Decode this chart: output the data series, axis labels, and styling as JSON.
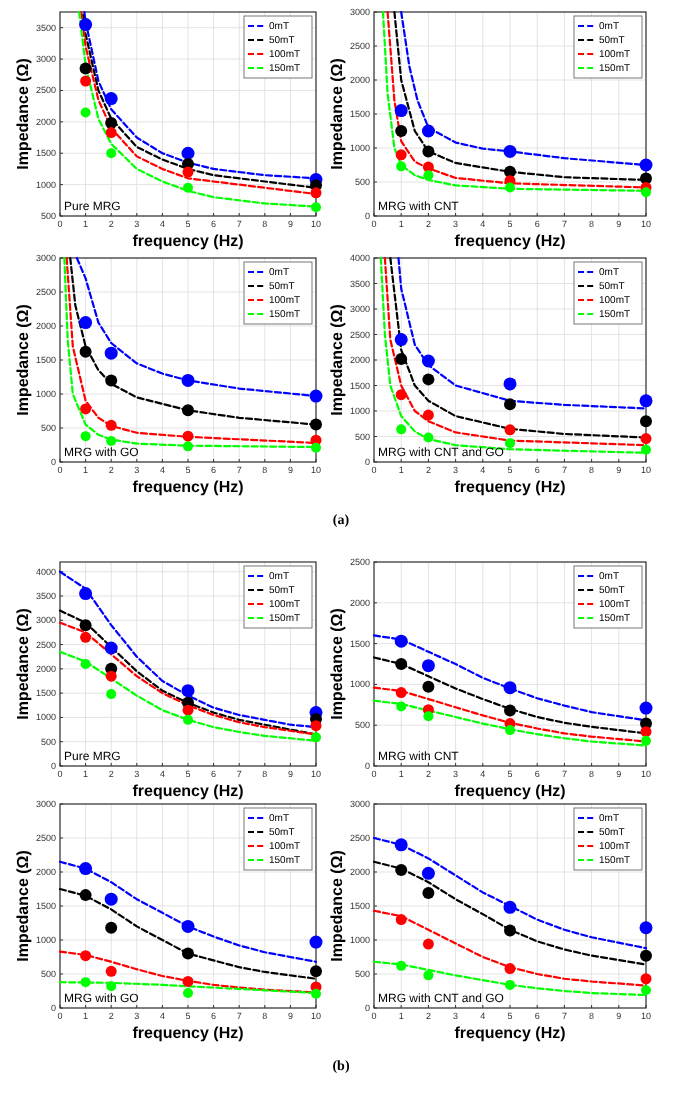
{
  "chart_data": [
    {
      "type": "scatter",
      "xlabel": "frequency (Hz)",
      "ylabel": "Impedance (Ω)",
      "x": [
        1,
        2,
        5,
        10
      ],
      "xlim": [
        0,
        10
      ],
      "xticks": [
        0,
        1,
        2,
        3,
        4,
        5,
        6,
        7,
        8,
        9,
        10
      ],
      "ylim": [
        500,
        3750
      ],
      "yticks": [
        500,
        1000,
        1500,
        2000,
        2500,
        3000,
        3500
      ],
      "grid": true,
      "legend": "top right",
      "annotations": [
        "Pure MRG"
      ],
      "series": [
        {
          "name": "0mT",
          "type": "line",
          "line_style": "dashed",
          "marker": "none",
          "color": "#0000ff",
          "x": [
            0.95,
            1,
            1.5,
            2,
            3,
            4,
            5,
            6,
            8,
            10
          ],
          "values": [
            3750,
            3600,
            2650,
            2200,
            1750,
            1500,
            1350,
            1250,
            1150,
            1100
          ]
        },
        {
          "name": "50mT",
          "type": "line",
          "line_style": "dashed",
          "marker": "none",
          "color": "#000000",
          "x": [
            0.9,
            1,
            1.5,
            2,
            3,
            4,
            5,
            6,
            8,
            10
          ],
          "values": [
            3700,
            3400,
            2500,
            2050,
            1600,
            1400,
            1250,
            1150,
            1050,
            950
          ]
        },
        {
          "name": "100mT",
          "type": "line",
          "line_style": "dashed",
          "marker": "none",
          "color": "#ff0000",
          "x": [
            0.83,
            1,
            1.5,
            2,
            3,
            4,
            5,
            6,
            8,
            10
          ],
          "values": [
            3750,
            3200,
            2350,
            1900,
            1450,
            1250,
            1100,
            1050,
            950,
            850
          ]
        },
        {
          "name": "150mT",
          "type": "line",
          "line_style": "dashed",
          "marker": "none",
          "color": "#00ff00",
          "x": [
            0.75,
            1,
            1.5,
            2,
            3,
            4,
            5,
            6,
            8,
            10
          ],
          "values": [
            3750,
            2900,
            2050,
            1650,
            1250,
            1050,
            900,
            800,
            700,
            650
          ]
        },
        {
          "type": "scatter",
          "marker": "circle",
          "color": "#0000ff",
          "values": [
            3550,
            2370,
            1500,
            1080
          ]
        },
        {
          "type": "scatter",
          "marker": "circle",
          "color": "#000000",
          "values": [
            2850,
            1980,
            1330,
            990
          ]
        },
        {
          "type": "scatter",
          "marker": "circle",
          "color": "#ff0000",
          "values": [
            2650,
            1830,
            1200,
            870
          ]
        },
        {
          "type": "scatter",
          "marker": "circle",
          "color": "#00ff00",
          "values": [
            2150,
            1500,
            950,
            640
          ]
        }
      ]
    },
    {
      "type": "scatter",
      "xlabel": "frequency (Hz)",
      "ylabel": "Impedance (Ω)",
      "x": [
        1,
        2,
        5,
        10
      ],
      "xlim": [
        0,
        10
      ],
      "xticks": [
        0,
        1,
        2,
        3,
        4,
        5,
        6,
        7,
        8,
        9,
        10
      ],
      "ylim": [
        0,
        3000
      ],
      "yticks": [
        0,
        500,
        1000,
        1500,
        2000,
        2500,
        3000
      ],
      "grid": true,
      "legend": "top right",
      "annotations": [
        "MRG with CNT"
      ],
      "series": [
        {
          "name": "0mT",
          "type": "line",
          "line_style": "dashed",
          "marker": "none",
          "color": "#0000ff",
          "x": [
            1,
            1.3,
            1.6,
            2,
            3,
            4,
            5,
            7,
            10
          ],
          "values": [
            3000,
            2200,
            1700,
            1300,
            1080,
            990,
            950,
            850,
            750
          ]
        },
        {
          "name": "50mT",
          "type": "line",
          "line_style": "dashed",
          "marker": "none",
          "color": "#000000",
          "x": [
            0.75,
            1,
            1.5,
            2,
            3,
            5,
            7,
            10
          ],
          "values": [
            3000,
            2000,
            1250,
            950,
            780,
            650,
            570,
            530
          ]
        },
        {
          "name": "100mT",
          "type": "line",
          "line_style": "dashed",
          "marker": "none",
          "color": "#ff0000",
          "x": [
            0.5,
            0.75,
            1,
            1.5,
            2,
            3,
            5,
            10
          ],
          "values": [
            3000,
            1700,
            1100,
            800,
            700,
            560,
            480,
            420
          ]
        },
        {
          "name": "150mT",
          "type": "line",
          "line_style": "dashed",
          "marker": "none",
          "color": "#00ff00",
          "x": [
            0.33,
            0.5,
            0.75,
            1,
            1.5,
            2,
            3,
            5,
            10
          ],
          "values": [
            3000,
            1800,
            1000,
            750,
            600,
            530,
            450,
            400,
            370
          ]
        },
        {
          "type": "scatter",
          "marker": "circle",
          "color": "#0000ff",
          "values": [
            1550,
            1250,
            950,
            750
          ]
        },
        {
          "type": "scatter",
          "marker": "circle",
          "color": "#000000",
          "values": [
            1250,
            950,
            650,
            550
          ]
        },
        {
          "type": "scatter",
          "marker": "circle",
          "color": "#ff0000",
          "values": [
            900,
            720,
            520,
            420
          ]
        },
        {
          "type": "scatter",
          "marker": "circle",
          "color": "#00ff00",
          "values": [
            730,
            600,
            420,
            350
          ]
        }
      ]
    },
    {
      "type": "scatter",
      "xlabel": "frequency (Hz)",
      "ylabel": "Impedance (Ω)",
      "x": [
        1,
        2,
        5,
        10
      ],
      "xlim": [
        0,
        10
      ],
      "xticks": [
        0,
        1,
        2,
        3,
        4,
        5,
        6,
        7,
        8,
        9,
        10
      ],
      "ylim": [
        0,
        3000
      ],
      "yticks": [
        0,
        500,
        1000,
        1500,
        2000,
        2500,
        3000
      ],
      "grid": true,
      "legend": "top right",
      "annotations": [
        "MRG with GO"
      ],
      "series": [
        {
          "name": "0mT",
          "type": "line",
          "line_style": "dashed",
          "marker": "none",
          "color": "#0000ff",
          "x": [
            0.66,
            1,
            1.5,
            2,
            3,
            4,
            5,
            7,
            10
          ],
          "values": [
            3000,
            2700,
            2050,
            1750,
            1450,
            1300,
            1200,
            1080,
            970
          ]
        },
        {
          "name": "50mT",
          "type": "line",
          "line_style": "dashed",
          "marker": "none",
          "color": "#000000",
          "x": [
            0.4,
            0.6,
            1,
            1.5,
            2,
            3,
            5,
            7,
            10
          ],
          "values": [
            3000,
            2300,
            1700,
            1350,
            1150,
            950,
            760,
            650,
            550
          ]
        },
        {
          "name": "100mT",
          "type": "line",
          "line_style": "dashed",
          "marker": "none",
          "color": "#ff0000",
          "x": [
            0.26,
            0.5,
            1,
            1.5,
            2,
            3,
            5,
            10
          ],
          "values": [
            3000,
            1700,
            900,
            650,
            530,
            430,
            370,
            280
          ]
        },
        {
          "name": "150mT",
          "type": "line",
          "line_style": "dashed",
          "marker": "none",
          "color": "#00ff00",
          "x": [
            0.17,
            0.3,
            0.5,
            1,
            1.5,
            2,
            3,
            5,
            10
          ],
          "values": [
            3000,
            1800,
            1000,
            550,
            400,
            330,
            270,
            240,
            220
          ]
        },
        {
          "type": "scatter",
          "marker": "circle",
          "color": "#0000ff",
          "values": [
            2050,
            1600,
            1200,
            970
          ]
        },
        {
          "type": "scatter",
          "marker": "circle",
          "color": "#000000",
          "values": [
            1620,
            1200,
            760,
            550
          ]
        },
        {
          "type": "scatter",
          "marker": "circle",
          "color": "#ff0000",
          "values": [
            780,
            540,
            380,
            320
          ]
        },
        {
          "type": "scatter",
          "marker": "circle",
          "color": "#00ff00",
          "values": [
            380,
            310,
            230,
            210
          ]
        }
      ]
    },
    {
      "type": "scatter",
      "xlabel": "frequency (Hz)",
      "ylabel": "Impedance (Ω)",
      "x": [
        1,
        2,
        5,
        10
      ],
      "xlim": [
        0,
        10
      ],
      "xticks": [
        0,
        1,
        2,
        3,
        4,
        5,
        6,
        7,
        8,
        9,
        10
      ],
      "ylim": [
        0,
        4000
      ],
      "yticks": [
        0,
        500,
        1000,
        1500,
        2000,
        2500,
        3000,
        3500,
        4000
      ],
      "grid": true,
      "legend": "top right",
      "annotations": [
        "MRG with CNT and GO",
        "(a)"
      ],
      "series": [
        {
          "name": "0mT",
          "type": "line",
          "line_style": "dashed",
          "marker": "none",
          "color": "#0000ff",
          "x": [
            0.9,
            1,
            1.5,
            2,
            3,
            5,
            7,
            10
          ],
          "values": [
            4000,
            3400,
            2300,
            1900,
            1500,
            1200,
            1120,
            1050
          ]
        },
        {
          "name": "50mT",
          "type": "line",
          "line_style": "dashed",
          "marker": "none",
          "color": "#000000",
          "x": [
            0.6,
            1,
            1.5,
            2,
            3,
            5,
            7,
            10
          ],
          "values": [
            4000,
            2200,
            1500,
            1200,
            900,
            650,
            550,
            480
          ]
        },
        {
          "name": "100mT",
          "type": "line",
          "line_style": "dashed",
          "marker": "none",
          "color": "#ff0000",
          "x": [
            0.4,
            0.6,
            1,
            1.5,
            2,
            3,
            5,
            10
          ],
          "values": [
            4000,
            2400,
            1500,
            1000,
            800,
            580,
            420,
            330
          ]
        },
        {
          "name": "150mT",
          "type": "line",
          "line_style": "dashed",
          "marker": "none",
          "color": "#00ff00",
          "x": [
            0.25,
            0.4,
            0.6,
            1,
            1.5,
            2,
            3,
            5,
            10
          ],
          "values": [
            4000,
            2500,
            1500,
            900,
            600,
            450,
            330,
            250,
            180
          ]
        },
        {
          "type": "scatter",
          "marker": "circle",
          "color": "#0000ff",
          "values": [
            2400,
            1980,
            1530,
            1200
          ]
        },
        {
          "type": "scatter",
          "marker": "circle",
          "color": "#000000",
          "values": [
            2020,
            1620,
            1130,
            800
          ]
        },
        {
          "type": "scatter",
          "marker": "circle",
          "color": "#ff0000",
          "values": [
            1320,
            920,
            630,
            460
          ]
        },
        {
          "type": "scatter",
          "marker": "circle",
          "color": "#00ff00",
          "values": [
            640,
            480,
            370,
            240
          ]
        }
      ]
    },
    {
      "type": "scatter",
      "xlabel": "frequency (Hz)",
      "ylabel": "Impedance (Ω)",
      "x": [
        1,
        2,
        5,
        10
      ],
      "xlim": [
        0,
        10
      ],
      "xticks": [
        0,
        1,
        2,
        3,
        4,
        5,
        6,
        7,
        8,
        9,
        10
      ],
      "ylim": [
        0,
        4200
      ],
      "yticks": [
        0,
        500,
        1000,
        1500,
        2000,
        2500,
        3000,
        3500,
        4000
      ],
      "grid": true,
      "legend": "top right",
      "annotations": [
        "Pure MRG"
      ],
      "series": [
        {
          "name": "0mT",
          "type": "line",
          "line_style": "dashed",
          "marker": "none",
          "color": "#0000ff",
          "x": [
            0,
            1,
            2,
            3,
            4,
            5,
            6,
            7,
            8,
            9,
            10
          ],
          "values": [
            4000,
            3650,
            2900,
            2250,
            1750,
            1450,
            1200,
            1050,
            950,
            850,
            800
          ]
        },
        {
          "name": "50mT",
          "type": "line",
          "line_style": "dashed",
          "marker": "none",
          "color": "#000000",
          "x": [
            0,
            1,
            2,
            3,
            4,
            5,
            6,
            7,
            8,
            10
          ],
          "values": [
            3200,
            2950,
            2450,
            1950,
            1550,
            1300,
            1100,
            950,
            850,
            650
          ]
        },
        {
          "name": "100mT",
          "type": "line",
          "line_style": "dashed",
          "marker": "none",
          "color": "#ff0000",
          "x": [
            0,
            1,
            2,
            3,
            4,
            5,
            6,
            7,
            8,
            10
          ],
          "values": [
            2950,
            2750,
            2300,
            1850,
            1500,
            1250,
            1050,
            900,
            800,
            650
          ]
        },
        {
          "name": "150mT",
          "type": "line",
          "line_style": "dashed",
          "marker": "none",
          "color": "#00ff00",
          "x": [
            0,
            1,
            2,
            3,
            4,
            5,
            6,
            7,
            8,
            10
          ],
          "values": [
            2350,
            2150,
            1800,
            1450,
            1150,
            950,
            800,
            700,
            620,
            520
          ]
        },
        {
          "type": "scatter",
          "marker": "circle",
          "color": "#0000ff",
          "values": [
            3550,
            2430,
            1550,
            1100
          ]
        },
        {
          "type": "scatter",
          "marker": "circle",
          "color": "#000000",
          "values": [
            2900,
            2000,
            1300,
            970
          ]
        },
        {
          "type": "scatter",
          "marker": "circle",
          "color": "#ff0000",
          "values": [
            2650,
            1850,
            1150,
            830
          ]
        },
        {
          "type": "scatter",
          "marker": "circle",
          "color": "#00ff00",
          "values": [
            2100,
            1480,
            950,
            590
          ]
        }
      ]
    },
    {
      "type": "scatter",
      "xlabel": "frequency (Hz)",
      "ylabel": "Impedance (Ω)",
      "x": [
        1,
        2,
        5,
        10
      ],
      "xlim": [
        0,
        10
      ],
      "xticks": [
        0,
        1,
        2,
        3,
        4,
        5,
        6,
        7,
        8,
        9,
        10
      ],
      "ylim": [
        0,
        2500
      ],
      "yticks": [
        0,
        500,
        1000,
        1500,
        2000,
        2500
      ],
      "grid": true,
      "legend": "top right",
      "annotations": [
        "MRG with CNT"
      ],
      "series": [
        {
          "name": "0mT",
          "type": "line",
          "line_style": "dashed",
          "marker": "none",
          "color": "#0000ff",
          "x": [
            0,
            1,
            2,
            3,
            4,
            5,
            6,
            7,
            8,
            10
          ],
          "values": [
            1600,
            1550,
            1400,
            1250,
            1080,
            950,
            830,
            740,
            660,
            560
          ]
        },
        {
          "name": "50mT",
          "type": "line",
          "line_style": "dashed",
          "marker": "none",
          "color": "#000000",
          "x": [
            0,
            1,
            2,
            3,
            4,
            5,
            6,
            7,
            8,
            10
          ],
          "values": [
            1330,
            1250,
            1100,
            950,
            820,
            700,
            600,
            530,
            480,
            400
          ]
        },
        {
          "name": "100mT",
          "type": "line",
          "line_style": "dashed",
          "marker": "none",
          "color": "#ff0000",
          "x": [
            0,
            1,
            2,
            3,
            4,
            5,
            6,
            7,
            8,
            10
          ],
          "values": [
            960,
            920,
            820,
            720,
            620,
            530,
            460,
            400,
            360,
            300
          ]
        },
        {
          "name": "150mT",
          "type": "line",
          "line_style": "dashed",
          "marker": "none",
          "color": "#00ff00",
          "x": [
            0,
            1,
            2,
            3,
            4,
            5,
            6,
            7,
            8,
            10
          ],
          "values": [
            800,
            760,
            680,
            600,
            520,
            450,
            390,
            340,
            300,
            250
          ]
        },
        {
          "type": "scatter",
          "marker": "circle",
          "color": "#0000ff",
          "values": [
            1530,
            1230,
            960,
            710
          ]
        },
        {
          "type": "scatter",
          "marker": "circle",
          "color": "#000000",
          "values": [
            1250,
            970,
            680,
            520
          ]
        },
        {
          "type": "scatter",
          "marker": "circle",
          "color": "#ff0000",
          "values": [
            900,
            690,
            520,
            420
          ]
        },
        {
          "type": "scatter",
          "marker": "circle",
          "color": "#00ff00",
          "values": [
            730,
            610,
            440,
            310
          ]
        }
      ]
    },
    {
      "type": "scatter",
      "xlabel": "frequency (Hz)",
      "ylabel": "Impedance (Ω)",
      "x": [
        1,
        2,
        5,
        10
      ],
      "xlim": [
        0,
        10
      ],
      "xticks": [
        0,
        1,
        2,
        3,
        4,
        5,
        6,
        7,
        8,
        9,
        10
      ],
      "ylim": [
        0,
        3000
      ],
      "yticks": [
        0,
        500,
        1000,
        1500,
        2000,
        2500,
        3000
      ],
      "grid": true,
      "legend": "top right",
      "annotations": [
        "MRG with GO"
      ],
      "series": [
        {
          "name": "0mT",
          "type": "line",
          "line_style": "dashed",
          "marker": "none",
          "color": "#0000ff",
          "x": [
            0,
            1,
            2,
            3,
            4,
            5,
            6,
            7,
            8,
            10
          ],
          "values": [
            2150,
            2050,
            1850,
            1600,
            1400,
            1200,
            1050,
            920,
            820,
            680
          ]
        },
        {
          "name": "50mT",
          "type": "line",
          "line_style": "dashed",
          "marker": "none",
          "color": "#000000",
          "x": [
            0,
            1,
            2,
            3,
            4,
            5,
            6,
            7,
            8,
            10
          ],
          "values": [
            1750,
            1650,
            1450,
            1200,
            1000,
            800,
            700,
            600,
            530,
            430
          ]
        },
        {
          "name": "100mT",
          "type": "line",
          "line_style": "dashed",
          "marker": "none",
          "color": "#ff0000",
          "x": [
            0,
            1,
            2,
            3,
            4,
            5,
            6,
            7,
            8,
            10
          ],
          "values": [
            830,
            780,
            680,
            570,
            470,
            400,
            340,
            300,
            270,
            230
          ]
        },
        {
          "name": "150mT",
          "type": "line",
          "line_style": "dashed",
          "marker": "none",
          "color": "#00ff00",
          "x": [
            0,
            2,
            4,
            6,
            8,
            10
          ],
          "values": [
            380,
            370,
            340,
            300,
            260,
            220
          ]
        },
        {
          "type": "scatter",
          "marker": "circle",
          "color": "#0000ff",
          "values": [
            2050,
            1600,
            1200,
            970
          ]
        },
        {
          "type": "scatter",
          "marker": "circle",
          "color": "#000000",
          "values": [
            1660,
            1180,
            800,
            540
          ]
        },
        {
          "type": "scatter",
          "marker": "circle",
          "color": "#ff0000",
          "values": [
            770,
            540,
            390,
            310
          ]
        },
        {
          "type": "scatter",
          "marker": "circle",
          "color": "#00ff00",
          "values": [
            380,
            320,
            220,
            210
          ]
        }
      ]
    },
    {
      "type": "scatter",
      "xlabel": "frequency (Hz)",
      "ylabel": "Impedance (Ω)",
      "x": [
        1,
        2,
        5,
        10
      ],
      "xlim": [
        0,
        10
      ],
      "xticks": [
        0,
        1,
        2,
        3,
        4,
        5,
        6,
        7,
        8,
        9,
        10
      ],
      "ylim": [
        0,
        3000
      ],
      "yticks": [
        0,
        500,
        1000,
        1500,
        2000,
        2500,
        3000
      ],
      "grid": true,
      "legend": "top right",
      "annotations": [
        "MRG with CNT and GO",
        "(b)"
      ],
      "series": [
        {
          "name": "0mT",
          "type": "line",
          "line_style": "dashed",
          "marker": "none",
          "color": "#0000ff",
          "x": [
            0,
            1,
            2,
            3,
            4,
            5,
            6,
            7,
            8,
            10
          ],
          "values": [
            2500,
            2400,
            2200,
            1950,
            1700,
            1500,
            1300,
            1150,
            1040,
            880
          ]
        },
        {
          "name": "50mT",
          "type": "line",
          "line_style": "dashed",
          "marker": "none",
          "color": "#000000",
          "x": [
            0,
            1,
            2,
            3,
            4,
            5,
            6,
            7,
            8,
            10
          ],
          "values": [
            2150,
            2050,
            1850,
            1600,
            1380,
            1150,
            980,
            860,
            770,
            640
          ]
        },
        {
          "name": "100mT",
          "type": "line",
          "line_style": "dashed",
          "marker": "none",
          "color": "#ff0000",
          "x": [
            0,
            1,
            2,
            3,
            4,
            5,
            6,
            7,
            8,
            10
          ],
          "values": [
            1430,
            1350,
            1150,
            950,
            750,
            600,
            500,
            430,
            390,
            330
          ]
        },
        {
          "name": "150mT",
          "type": "line",
          "line_style": "dashed",
          "marker": "none",
          "color": "#00ff00",
          "x": [
            0,
            1,
            2,
            3,
            4,
            5,
            6,
            7,
            8,
            10
          ],
          "values": [
            680,
            640,
            560,
            480,
            410,
            340,
            290,
            250,
            220,
            190
          ]
        },
        {
          "type": "scatter",
          "marker": "circle",
          "color": "#0000ff",
          "values": [
            2400,
            1980,
            1480,
            1180
          ]
        },
        {
          "type": "scatter",
          "marker": "circle",
          "color": "#000000",
          "values": [
            2030,
            1690,
            1140,
            770
          ]
        },
        {
          "type": "scatter",
          "marker": "circle",
          "color": "#ff0000",
          "values": [
            1300,
            940,
            580,
            430
          ]
        },
        {
          "type": "scatter",
          "marker": "circle",
          "color": "#00ff00",
          "values": [
            620,
            480,
            340,
            260
          ]
        }
      ]
    }
  ]
}
